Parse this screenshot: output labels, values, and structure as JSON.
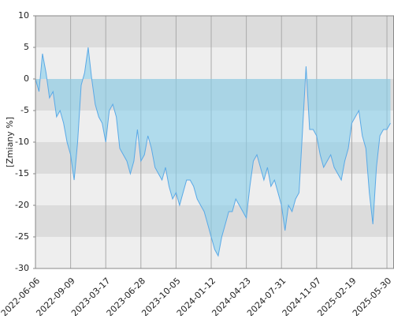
{
  "chart_data": {
    "type": "area",
    "y_label": "[Zmiany %]",
    "x": [
      0,
      1,
      2,
      3,
      4,
      5,
      6,
      7,
      8,
      9,
      10,
      11,
      12,
      13,
      14,
      15,
      16,
      17,
      18,
      19,
      20,
      21,
      22,
      23,
      24,
      25,
      26,
      27,
      28,
      29,
      30,
      31,
      32,
      33,
      34,
      35,
      36,
      37,
      38,
      39,
      40,
      41,
      42,
      43,
      44,
      45,
      46,
      47,
      48,
      49,
      50,
      51,
      52,
      53,
      54,
      55,
      56,
      57,
      58,
      59,
      60,
      61,
      62,
      63,
      64,
      65,
      66,
      67,
      68,
      69,
      70,
      71,
      72,
      73,
      74,
      75,
      76,
      77,
      78,
      79,
      80,
      81,
      82,
      83,
      84,
      85,
      86,
      87,
      88,
      89,
      90,
      91,
      92,
      93,
      94,
      95,
      96,
      97,
      98,
      99,
      100,
      101
    ],
    "values": [
      0,
      -2,
      4,
      1,
      -3,
      -2,
      -6,
      -5,
      -7,
      -10,
      -12,
      -16,
      -10,
      -1,
      1,
      5,
      0,
      -4,
      -6,
      -7,
      -10,
      -5,
      -4,
      -6,
      -11,
      -12,
      -13,
      -15,
      -13,
      -8,
      -13,
      -12,
      -9,
      -11,
      -14,
      -15,
      -16,
      -14,
      -17,
      -19,
      -18,
      -20,
      -18,
      -16,
      -16,
      -17,
      -19,
      -20,
      -21,
      -23,
      -25,
      -27,
      -28,
      -25,
      -23,
      -21,
      -21,
      -19,
      -20,
      -21,
      -22,
      -17,
      -13,
      -12,
      -14,
      -16,
      -14,
      -17,
      -16,
      -18,
      -20,
      -24,
      -20,
      -21,
      -19,
      -18,
      -8,
      2,
      -8,
      -8,
      -9,
      -12,
      -14,
      -13,
      -12,
      -14,
      -15,
      -16,
      -13,
      -11,
      -7,
      -6,
      -5,
      -9,
      -11,
      -18,
      -23,
      -14,
      -9,
      -8,
      -8,
      -7
    ],
    "color": "#5aa9e6",
    "xlim": [
      0,
      101
    ],
    "xticks": [
      {
        "value": 0,
        "label": "2022-06-06"
      },
      {
        "value": 10,
        "label": "2022-09-09"
      },
      {
        "value": 20,
        "label": "2023-03-17"
      },
      {
        "value": 30,
        "label": "2023-06-28"
      },
      {
        "value": 40,
        "label": "2023-10-05"
      },
      {
        "value": 50,
        "label": "2024-01-12"
      },
      {
        "value": 60,
        "label": "2024-04-23"
      },
      {
        "value": 70,
        "label": "2024-07-31"
      },
      {
        "value": 80,
        "label": "2024-11-07"
      },
      {
        "value": 90,
        "label": "2025-02-19"
      },
      {
        "value": 100,
        "label": "2025-05-30"
      }
    ],
    "ylim": [
      -30,
      10
    ],
    "yticks": [
      -30,
      -25,
      -20,
      -15,
      -10,
      -5,
      0,
      5,
      10
    ],
    "grid": true
  }
}
